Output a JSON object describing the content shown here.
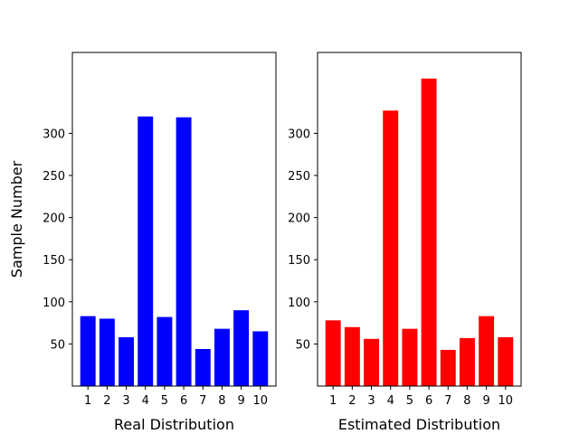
{
  "chart_data": [
    {
      "type": "bar",
      "categories": [
        "1",
        "2",
        "3",
        "4",
        "5",
        "6",
        "7",
        "8",
        "9",
        "10"
      ],
      "values": [
        83,
        80,
        58,
        320,
        82,
        319,
        44,
        68,
        90,
        65
      ],
      "color": "#0000ff",
      "xlabel": "Real Distribution",
      "ylabel": "Sample Number",
      "yticks": [
        50,
        100,
        150,
        200,
        250,
        300
      ],
      "ylim": [
        0,
        396
      ],
      "grid": false
    },
    {
      "type": "bar",
      "categories": [
        "1",
        "2",
        "3",
        "4",
        "5",
        "6",
        "7",
        "8",
        "9",
        "10"
      ],
      "values": [
        78,
        70,
        56,
        327,
        68,
        365,
        43,
        57,
        83,
        58
      ],
      "color": "#ff0000",
      "xlabel": "Estimated Distribution",
      "ylabel": "",
      "yticks": [
        50,
        100,
        150,
        200,
        250,
        300
      ],
      "ylim": [
        0,
        396
      ],
      "grid": false
    }
  ]
}
